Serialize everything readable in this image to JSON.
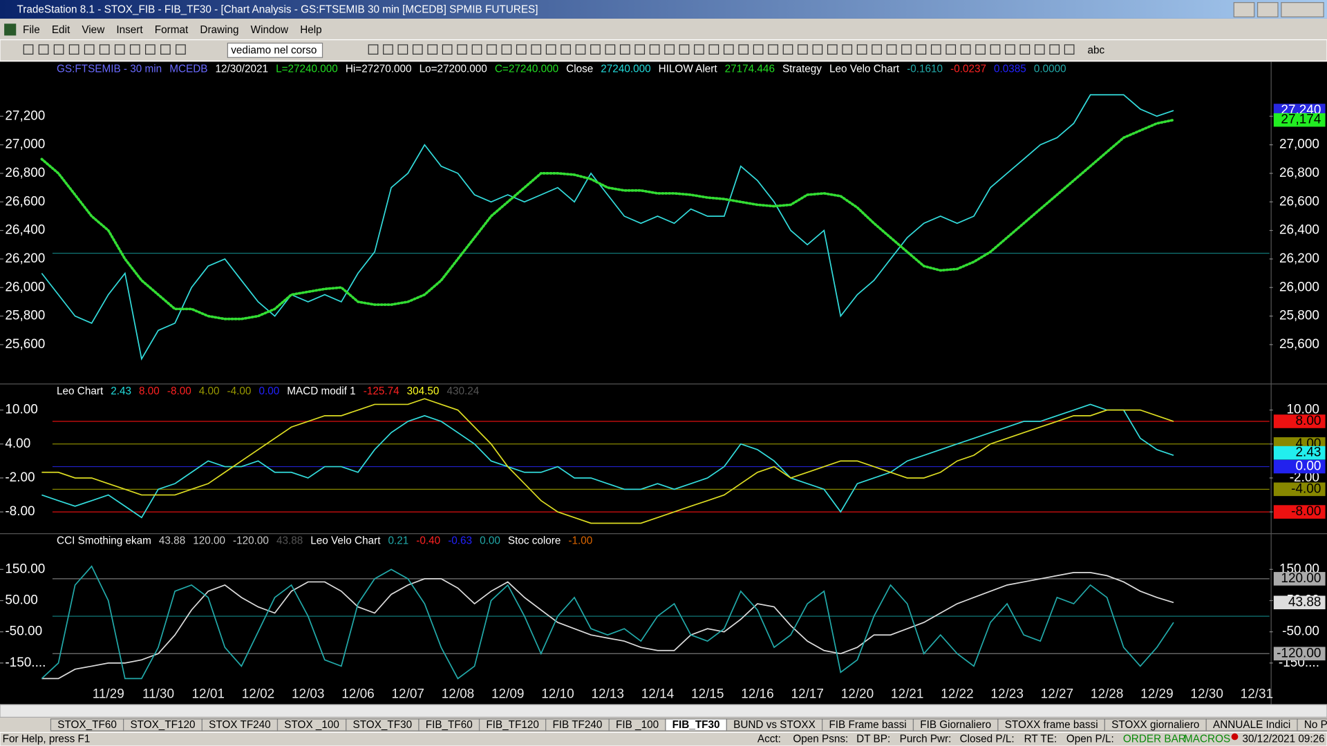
{
  "window": {
    "title": "TradeStation 8.1 - STOX_FIB - FIB_TF30 - [Chart Analysis - GS:FTSEMIB  30 min  [MCEDB] SPMIB FUTURES]",
    "menu": [
      "File",
      "Edit",
      "View",
      "Insert",
      "Format",
      "Drawing",
      "Window",
      "Help"
    ],
    "toolbar_combo": "vediamo nel corso",
    "toolbar_text": "abc",
    "tabs": [
      "STOX_TF60",
      "STOX_TF120",
      "STOX TF240",
      "STOX _100",
      "STOX_TF30",
      "FIB_TF60",
      "FIB_TF120",
      "FIB TF240",
      "FIB _100",
      "FIB_TF30",
      "BUND vs STOXX",
      "FIB Frame bassi",
      "FIB Giornaliero",
      "STOXX frame bassi",
      "STOXX giornaliero",
      "ANNUALE Indici",
      "No PREZZI"
    ],
    "active_tab": 9,
    "status": {
      "help": "For Help, press F1",
      "fields": [
        "Acct:",
        "Open Psns:",
        "DT BP:",
        "Purch Pwr:",
        "Closed P/L:",
        "RT TE:",
        "Open P/L:"
      ],
      "order_bar": "ORDER BAR",
      "macros": "MACROS",
      "clock": "30/12/2021 09:26"
    }
  },
  "chart_data": {
    "type": "line",
    "categories": [
      null,
      null,
      null,
      null,
      "11/29",
      null,
      null,
      "11/30",
      null,
      null,
      "12/01",
      null,
      null,
      "12/02",
      null,
      null,
      "12/03",
      null,
      null,
      "12/06",
      null,
      null,
      "12/07",
      null,
      null,
      "12/08",
      null,
      null,
      "12/09",
      null,
      null,
      "12/10",
      null,
      null,
      "12/13",
      null,
      null,
      "12/14",
      null,
      null,
      "12/15",
      null,
      null,
      "12/16",
      null,
      null,
      "12/17",
      null,
      null,
      "12/20",
      null,
      null,
      "12/21",
      null,
      null,
      "12/22",
      null,
      null,
      "12/23",
      null,
      null,
      "12/27",
      null,
      null,
      "12/28",
      null,
      null,
      "12/29",
      null,
      null,
      "12/30",
      null,
      null,
      "12/31",
      null
    ],
    "panes": [
      {
        "legend": [
          {
            "text": "GS:FTSEMIB - 30 min",
            "color": "#6a6aff"
          },
          {
            "text": "MCEDB",
            "color": "#6a6aff"
          },
          {
            "text": "12/30/2021",
            "color": "#ffffff"
          },
          {
            "text": "L=27240.000",
            "color": "#22dd22"
          },
          {
            "text": "Hi=27270.000",
            "color": "#ffffff"
          },
          {
            "text": "Lo=27200.000",
            "color": "#ffffff"
          },
          {
            "text": "C=27240.000",
            "color": "#22dd22"
          },
          {
            "text": "Close",
            "color": "#ffffff"
          },
          {
            "text": "27240.000",
            "color": "#22dddd"
          },
          {
            "text": "HILOW Alert",
            "color": "#ffffff"
          },
          {
            "text": "27174.446",
            "color": "#22dd22"
          },
          {
            "text": "Strategy",
            "color": "#ffffff"
          },
          {
            "text": "Leo Velo Chart",
            "color": "#ffffff"
          },
          {
            "text": "-0.1610",
            "color": "#22aaaa"
          },
          {
            "text": "-0.0237",
            "color": "#ff2222"
          },
          {
            "text": "0.0385",
            "color": "#2222ff"
          },
          {
            "text": "0.0000",
            "color": "#22aaaa"
          }
        ],
        "ylim": [
          25330,
          27570
        ],
        "yticks": [
          {
            "value": 25600,
            "label": "25,600"
          },
          {
            "value": 25800,
            "label": "25,800"
          },
          {
            "value": 26000,
            "label": "26,000"
          },
          {
            "value": 26200,
            "label": "26,200"
          },
          {
            "value": 26400,
            "label": "26,400"
          },
          {
            "value": 26600,
            "label": "26,600"
          },
          {
            "value": 26800,
            "label": "26,800"
          },
          {
            "value": 27000,
            "label": "27,000"
          },
          {
            "value": 27200,
            "label": "27,200"
          }
        ],
        "levels": [
          {
            "value": 26240,
            "color": "#117777"
          }
        ],
        "series": [
          {
            "name": "Close",
            "color": "#33dddd",
            "dotted": false,
            "values": [
              26100,
              25950,
              25800,
              25750,
              25950,
              26100,
              25500,
              25700,
              25750,
              26000,
              26150,
              26200,
              26050,
              25900,
              25800,
              25950,
              25900,
              25950,
              25900,
              26100,
              26250,
              26700,
              26800,
              27000,
              26850,
              26800,
              26650,
              26600,
              26650,
              26600,
              26650,
              26700,
              26600,
              26800,
              26650,
              26500,
              26450,
              26500,
              26450,
              26550,
              26500,
              26500,
              26850,
              26750,
              26600,
              26400,
              26300,
              26400,
              25800,
              25950,
              26050,
              26200,
              26350,
              26450,
              26500,
              26450,
              26500,
              26700,
              26800,
              26900,
              27000,
              27050,
              27150,
              27350,
              27350,
              27350,
              27250,
              27200,
              27240,
              null,
              null,
              null,
              null,
              null,
              null
            ]
          },
          {
            "name": "HILOW Alert",
            "color": "#33dd33",
            "dotted": true,
            "values": [
              26900,
              26800,
              26650,
              26500,
              26400,
              26200,
              26050,
              25950,
              25850,
              25850,
              25800,
              25780,
              25780,
              25800,
              25850,
              25950,
              25970,
              25990,
              26000,
              25900,
              25880,
              25880,
              25900,
              25950,
              26050,
              26200,
              26350,
              26500,
              26600,
              26700,
              26800,
              26800,
              26790,
              26760,
              26700,
              26680,
              26680,
              26660,
              26660,
              26650,
              26630,
              26620,
              26600,
              26580,
              26570,
              26580,
              26650,
              26660,
              26640,
              26560,
              26450,
              26350,
              26250,
              26150,
              26120,
              26130,
              26180,
              26250,
              26350,
              26450,
              26550,
              26650,
              26750,
              26850,
              26950,
              27050,
              27100,
              27150,
              27174,
              null,
              null,
              null,
              null,
              null,
              null
            ]
          }
        ],
        "last_labels": [
          {
            "value": 27240,
            "label": "27,240",
            "color": "#2828e0"
          },
          {
            "value": 27174,
            "label": "27,174",
            "color": "#22ee22"
          }
        ]
      },
      {
        "legend": [
          {
            "text": "Leo Chart",
            "color": "#ffffff"
          },
          {
            "text": "2.43",
            "color": "#22dddd"
          },
          {
            "text": "8.00",
            "color": "#ff2222"
          },
          {
            "text": "-8.00",
            "color": "#ff2222"
          },
          {
            "text": "4.00",
            "color": "#999900"
          },
          {
            "text": "-4.00",
            "color": "#999900"
          },
          {
            "text": "0.00",
            "color": "#2222ff"
          },
          {
            "text": "MACD modif 1",
            "color": "#ffffff"
          },
          {
            "text": "-125.74",
            "color": "#ff2222"
          },
          {
            "text": "304.50",
            "color": "#ffff22"
          },
          {
            "text": "430.24",
            "color": "#555555"
          }
        ],
        "ylim": [
          -11.7,
          14.3
        ],
        "yticks": [
          {
            "value": -8,
            "label": "-8.00"
          },
          {
            "value": -2,
            "label": "-2.00"
          },
          {
            "value": 4,
            "label": "4.00"
          },
          {
            "value": 10,
            "label": "10.00"
          }
        ],
        "levels": [
          {
            "value": 8,
            "color": "#dd1111"
          },
          {
            "value": 4,
            "color": "#888800"
          },
          {
            "value": 0,
            "color": "#2222cc"
          },
          {
            "value": -4,
            "color": "#888800"
          },
          {
            "value": -8,
            "color": "#dd1111"
          }
        ],
        "series": [
          {
            "name": "Leo Chart",
            "color": "#33dddd",
            "dotted": false,
            "values": [
              -5,
              -6,
              -7,
              -6,
              -5,
              -7,
              -9,
              -4,
              -3,
              -1,
              1,
              0,
              0,
              1,
              -1,
              -1,
              -2,
              0,
              0,
              -1,
              3,
              6,
              8,
              9,
              8,
              6,
              4,
              1,
              0,
              -1,
              -1,
              0,
              -2,
              -2,
              -3,
              -4,
              -4,
              -3,
              -4,
              -3,
              -2,
              0,
              4,
              3,
              1,
              -2,
              -3,
              -4,
              -8,
              -3,
              -2,
              -1,
              1,
              2,
              3,
              4,
              5,
              6,
              7,
              8,
              8,
              9,
              10,
              11,
              10,
              10,
              5,
              3,
              2,
              null,
              null,
              null,
              null,
              null,
              null
            ]
          },
          {
            "name": "MACD modif 1",
            "color": "#dddd22",
            "dotted": false,
            "values": [
              -1,
              -1,
              -2,
              -2,
              -3,
              -4,
              -5,
              -5,
              -5,
              -4,
              -3,
              -1,
              1,
              3,
              5,
              7,
              8,
              9,
              9,
              10,
              11,
              11,
              11,
              12,
              11,
              10,
              7,
              4,
              0,
              -3,
              -6,
              -8,
              -9,
              -10,
              -10,
              -10,
              -10,
              -9,
              -8,
              -7,
              -6,
              -5,
              -3,
              -1,
              0,
              -2,
              -1,
              0,
              1,
              1,
              0,
              -1,
              -2,
              -2,
              -1,
              1,
              2,
              4,
              5,
              6,
              7,
              8,
              9,
              9,
              10,
              10,
              10,
              9,
              8,
              null,
              null,
              null,
              null,
              null,
              null
            ]
          }
        ],
        "last_labels": [
          {
            "value": 8,
            "label": "8.00",
            "color": "#ee1111"
          },
          {
            "value": 4,
            "label": "4.00",
            "color": "#888800"
          },
          {
            "value": 2.43,
            "label": "2.43",
            "color": "#22eeee"
          },
          {
            "value": 0,
            "label": "0.00",
            "color": "#2222ee"
          },
          {
            "value": -4,
            "label": "-4.00",
            "color": "#888800"
          },
          {
            "value": -8,
            "label": "-8.00",
            "color": "#ee1111"
          }
        ]
      },
      {
        "legend": [
          {
            "text": "CCI Smothing ekam",
            "color": "#ffffff"
          },
          {
            "text": "43.88",
            "color": "#cccccc"
          },
          {
            "text": "120.00",
            "color": "#cccccc"
          },
          {
            "text": "-120.00",
            "color": "#cccccc"
          },
          {
            "text": "43.88",
            "color": "#555555"
          },
          {
            "text": "Leo Velo Chart",
            "color": "#ffffff"
          },
          {
            "text": "0.21",
            "color": "#22aaaa"
          },
          {
            "text": "-0.40",
            "color": "#ff2222"
          },
          {
            "text": "-0.63",
            "color": "#2222ff"
          },
          {
            "text": "0.00",
            "color": "#22aaaa"
          },
          {
            "text": "Stoc colore",
            "color": "#ffffff"
          },
          {
            "text": "-1.00",
            "color": "#dd6600"
          }
        ],
        "ylim": [
          -210,
          259
        ],
        "yticks": [
          {
            "value": -150,
            "label": "-150...."
          },
          {
            "value": -50,
            "label": "-50.00"
          },
          {
            "value": 50,
            "label": "50.00"
          },
          {
            "value": 150,
            "label": "150.00"
          }
        ],
        "levels": [
          {
            "value": 120,
            "color": "#777777"
          },
          {
            "value": 0,
            "color": "#117777"
          },
          {
            "value": -120,
            "color": "#777777"
          }
        ],
        "series": [
          {
            "name": "CCI Smothing ekam",
            "color": "#dddddd",
            "dotted": false,
            "values": [
              -200,
              -200,
              -170,
              -160,
              -150,
              -150,
              -140,
              -120,
              -60,
              20,
              80,
              100,
              60,
              30,
              10,
              80,
              110,
              110,
              80,
              30,
              10,
              70,
              100,
              120,
              120,
              90,
              40,
              80,
              110,
              60,
              20,
              -20,
              -40,
              -60,
              -70,
              -80,
              -100,
              -110,
              -110,
              -60,
              -40,
              -50,
              -10,
              40,
              30,
              -30,
              -80,
              -110,
              -120,
              -100,
              -60,
              -60,
              -40,
              -20,
              10,
              40,
              60,
              80,
              100,
              110,
              120,
              130,
              140,
              140,
              130,
              110,
              80,
              60,
              43.88,
              null,
              null,
              null,
              null,
              null,
              null
            ]
          },
          {
            "name": "Leo Velo Chart",
            "color": "#22aaaa",
            "dotted": false,
            "values": [
              -200,
              -150,
              100,
              160,
              50,
              -200,
              -200,
              -100,
              80,
              100,
              60,
              -100,
              -160,
              -50,
              60,
              100,
              0,
              -140,
              -160,
              40,
              120,
              150,
              120,
              40,
              -100,
              -200,
              -160,
              50,
              100,
              0,
              -120,
              0,
              60,
              -40,
              -60,
              -40,
              -80,
              0,
              40,
              -60,
              -80,
              -40,
              80,
              20,
              -100,
              -60,
              40,
              80,
              -180,
              -140,
              0,
              100,
              40,
              -120,
              -60,
              -120,
              -160,
              -20,
              40,
              -60,
              -80,
              60,
              40,
              100,
              60,
              -100,
              -160,
              -100,
              -20,
              null,
              null,
              null,
              null,
              null,
              null
            ]
          }
        ],
        "last_labels": [
          {
            "value": 120,
            "label": "120.00",
            "color": "#aaaaaa"
          },
          {
            "value": 43.88,
            "label": "43.88",
            "color": "#dddddd"
          },
          {
            "value": -120,
            "label": "-120.00",
            "color": "#aaaaaa"
          }
        ]
      }
    ]
  }
}
